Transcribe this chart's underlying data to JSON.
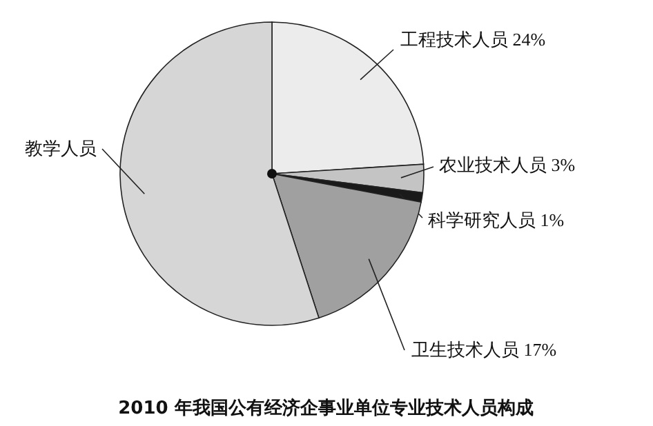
{
  "chart_data": {
    "type": "pie",
    "title": "2010 年我国公有经济企事业单位专业技术人员构成",
    "categories": [
      "工程技术人员",
      "农业技术人员",
      "科学研究人员",
      "卫生技术人员",
      "教学人员"
    ],
    "values": [
      24,
      3,
      1,
      17,
      55
    ],
    "value_labels": [
      "24%",
      "3%",
      "1%",
      "17%",
      null
    ],
    "colors": [
      "#ececec",
      "#c4c4c4",
      "#1a1a1a",
      "#a0a0a0",
      "#d6d6d6"
    ],
    "legend": false
  }
}
